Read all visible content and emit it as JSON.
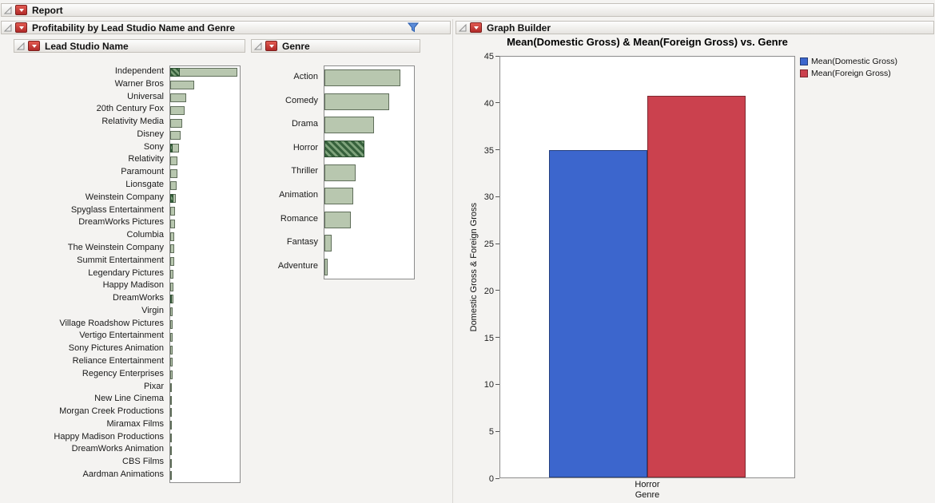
{
  "report_header": {
    "title": "Report"
  },
  "left_panel": {
    "title": "Profitability by Lead Studio Name and Genre",
    "filter_icon": "funnel-icon"
  },
  "graph_panel": {
    "title": "Graph Builder"
  },
  "colors": {
    "histogram_bar": "#b8c7af",
    "histogram_selected": "#36613c",
    "domestic_blue": "#3c66cd",
    "foreign_red": "#cb414e"
  },
  "chart_data": [
    {
      "type": "bar",
      "orientation": "horizontal",
      "title": "Lead Studio Name",
      "categories": [
        "Independent",
        "Warner Bros",
        "Universal",
        "20th Century Fox",
        "Relativity Media",
        "Disney",
        "Sony",
        "Relativity",
        "Paramount",
        "Lionsgate",
        "Weinstein Company",
        "Spyglass Entertainment",
        "DreamWorks Pictures",
        "Columbia",
        "The Weinstein Company",
        "Summit Entertainment",
        "Legendary Pictures",
        "Happy Madison",
        "DreamWorks",
        "Virgin",
        "Village Roadshow Pictures",
        "Vertigo Entertainment",
        "Sony Pictures Animation",
        "Reliance Entertainment",
        "Regency Enterprises",
        "Pixar",
        "New Line Cinema",
        "Morgan Creek Productions",
        "Miramax Films",
        "Happy Madison Productions",
        "DreamWorks Animation",
        "CBS Films",
        "Aardman Animations"
      ],
      "values": [
        87,
        31,
        21,
        19,
        16,
        13,
        11,
        9,
        9,
        8,
        7,
        6,
        6,
        5,
        5,
        5,
        4,
        4,
        4,
        3,
        3,
        3,
        3,
        3,
        3,
        2,
        2,
        2,
        2,
        2,
        2,
        2,
        2
      ],
      "selected_values": [
        12,
        0,
        0,
        0,
        0,
        0,
        2,
        0,
        0,
        0,
        4,
        0,
        0,
        0,
        0,
        0,
        0,
        0,
        2,
        0,
        0,
        0,
        0,
        0,
        0,
        0,
        0,
        0,
        0,
        0,
        0,
        0,
        0
      ],
      "xlim": [
        0,
        90
      ]
    },
    {
      "type": "bar",
      "orientation": "horizontal",
      "title": "Genre",
      "categories": [
        "Action",
        "Comedy",
        "Drama",
        "Horror",
        "Thriller",
        "Animation",
        "Romance",
        "Fantasy",
        "Adventure"
      ],
      "values": [
        98,
        83,
        64,
        51,
        40,
        37,
        34,
        9,
        4
      ],
      "selected": "Horror",
      "xlim": [
        0,
        115
      ]
    },
    {
      "type": "bar",
      "title": "Mean(Domestic Gross) & Mean(Foreign Gross) vs. Genre",
      "categories": [
        "Horror"
      ],
      "series": [
        {
          "name": "Mean(Domestic Gross)",
          "color": "#3c66cd",
          "values": [
            35
          ]
        },
        {
          "name": "Mean(Foreign Gross)",
          "color": "#cb414e",
          "values": [
            40.8
          ]
        }
      ],
      "xlabel": "Genre",
      "ylabel": "Domestic Gross & Foreign Gross",
      "ylim": [
        0,
        45
      ],
      "yticks": [
        0,
        5,
        10,
        15,
        20,
        25,
        30,
        35,
        40,
        45
      ],
      "grid": false,
      "legend_position": "top-right"
    }
  ]
}
